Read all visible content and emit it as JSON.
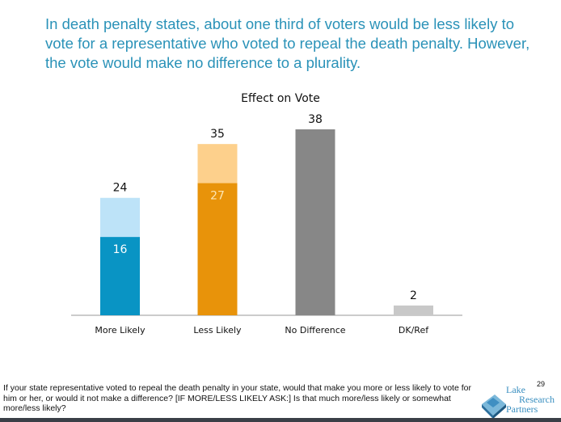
{
  "headline": "In death penalty states, about one third of voters would be less likely to vote for a representative who voted to repeal the death penalty.  However, the vote would make no difference to a plurality.",
  "footnote": "If your state representative voted to repeal the death penalty in your state, would that make you more or less likely to vote for him or her, or would it not make a difference? [IF MORE/LESS LIKELY ASK:] Is that much more/less likely or somewhat more/less likely?",
  "page_number": "29",
  "logo": {
    "line1": "Lake",
    "line2": "Research",
    "line3": "Partners"
  },
  "chart_data": {
    "type": "bar",
    "title": "Effect on Vote",
    "xlabel": "",
    "ylabel": "",
    "ylim": [
      0,
      38
    ],
    "grid": false,
    "categories": [
      "More Likely",
      "Less Likely",
      "No Difference",
      "DK/Ref"
    ],
    "totals": [
      24,
      35,
      38,
      2
    ],
    "strong": [
      16,
      27,
      null,
      null
    ],
    "colors": {
      "More Likely": {
        "total": "#bde3f8",
        "strong": "#0994c4",
        "strong_label": "#ffffff"
      },
      "Less Likely": {
        "total": "#fdd08c",
        "strong": "#e8930a",
        "strong_label": "#fde6b4"
      },
      "No Difference": {
        "total": "#878787"
      },
      "DK/Ref": {
        "total": "#c8c8c8"
      }
    }
  }
}
